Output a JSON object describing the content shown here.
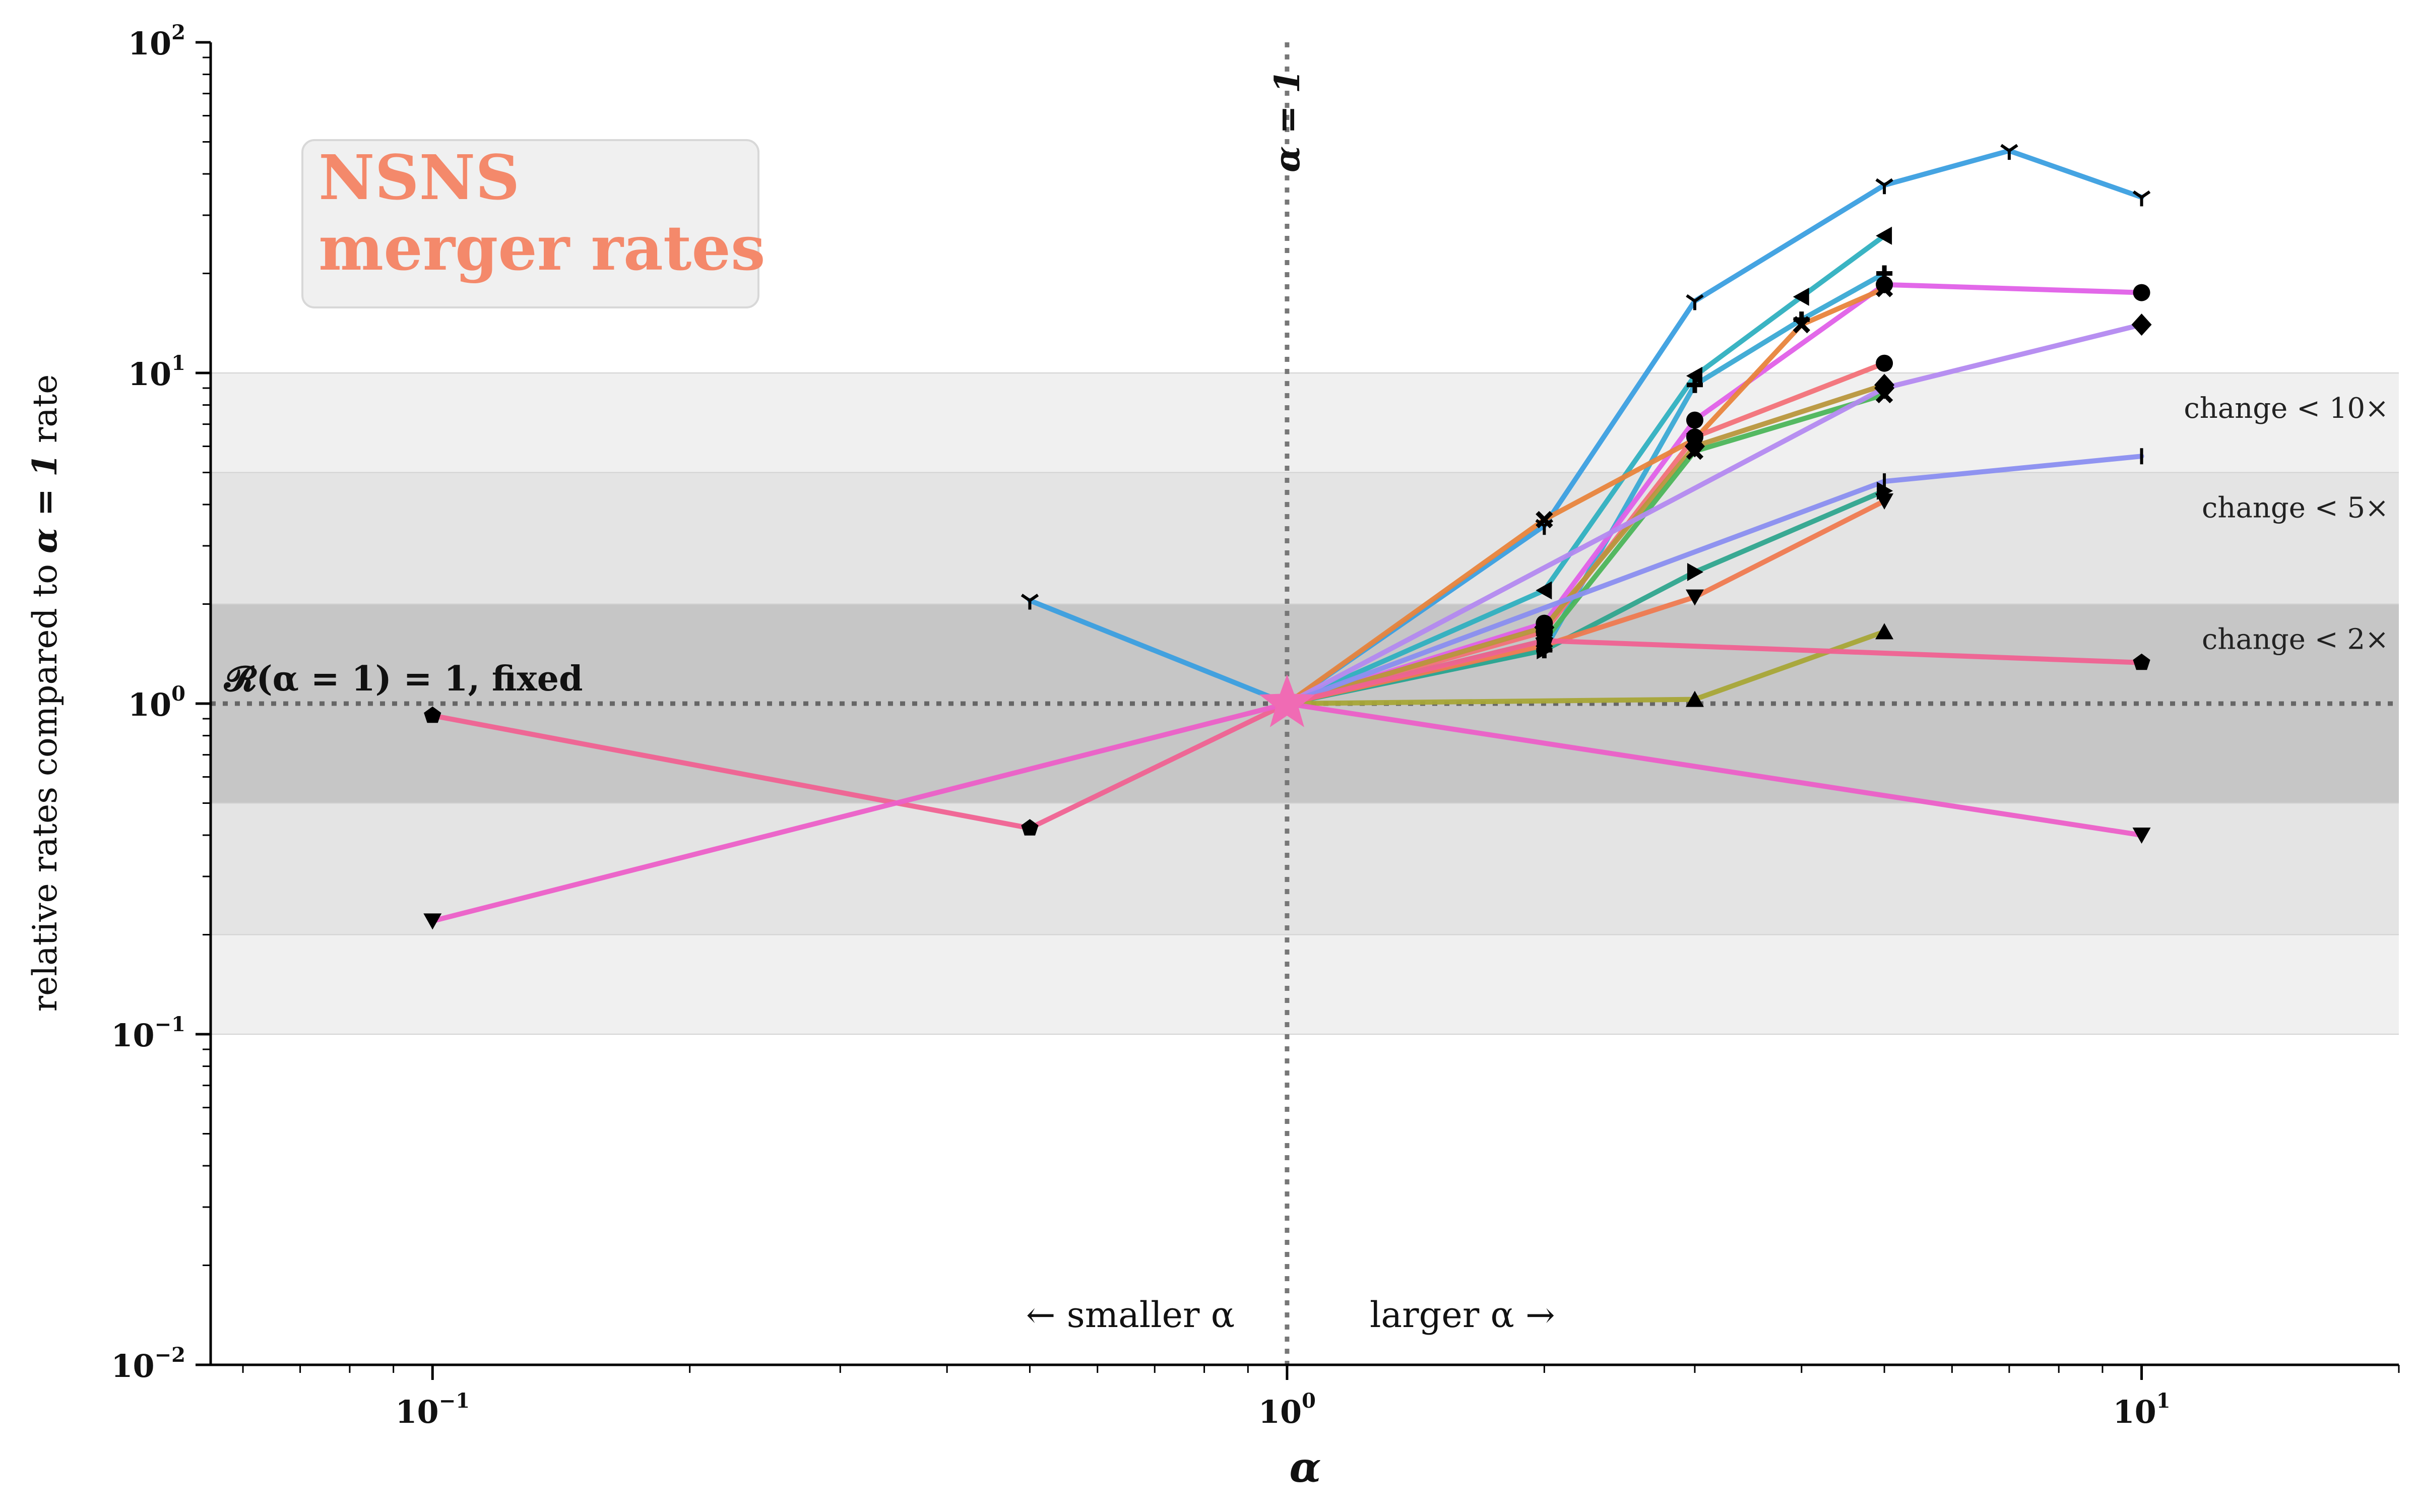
{
  "legend_box": {
    "line1": "NSNS",
    "line2": "merger rates",
    "color": "#f4896b"
  },
  "chart_data": {
    "type": "line",
    "x_scale": "log",
    "y_scale": "log",
    "xlim": [
      0.055,
      20
    ],
    "ylim": [
      0.01,
      100
    ],
    "xlabel": "α",
    "ylabel_parts": [
      "relative rates compared to ",
      "α = 1",
      " rate"
    ],
    "x_ticks": [
      {
        "value": 0.1,
        "base": "10",
        "exp": "−1"
      },
      {
        "value": 1,
        "base": "10",
        "exp": "0"
      },
      {
        "value": 10,
        "base": "10",
        "exp": "1"
      }
    ],
    "y_ticks": [
      {
        "value": 0.01,
        "base": "10",
        "exp": "−2"
      },
      {
        "value": 0.1,
        "base": "10",
        "exp": "−1"
      },
      {
        "value": 1,
        "base": "10",
        "exp": "0"
      },
      {
        "value": 10,
        "base": "10",
        "exp": "1"
      },
      {
        "value": 100,
        "base": "10",
        "exp": "2"
      }
    ],
    "bands": [
      {
        "low": 0.1,
        "high": 10,
        "color": "#f0f0f0",
        "label": "change < 10×",
        "label_y": 7.8
      },
      {
        "low": 0.2,
        "high": 5,
        "color": "#e4e4e4",
        "label": "change < 5×",
        "label_y": 3.9
      },
      {
        "low": 0.5,
        "high": 2,
        "color": "#c6c6c6",
        "label": "change < 2×",
        "label_y": 1.56
      }
    ],
    "reference": {
      "horizontal_label": "𝓡(α = 1) = 1, fixed",
      "vertical_label": "α = 1",
      "smaller_label": "← smaller α",
      "larger_label": "larger α →",
      "star_color": "#f06bb4"
    },
    "series": [
      {
        "color": "#3b9fe0",
        "marker": "tri_down",
        "x": [
          0.5,
          1,
          2,
          3,
          5,
          7,
          10
        ],
        "y": [
          2.05,
          1,
          3.45,
          16.5,
          37,
          47,
          34
        ]
      },
      {
        "color": "#2fb0c0",
        "marker": "tri_left",
        "x": [
          1,
          2,
          3,
          4,
          5
        ],
        "y": [
          1,
          2.2,
          9.8,
          17,
          26
        ]
      },
      {
        "color": "#3aa9d4",
        "marker": "plus",
        "x": [
          1,
          2,
          3,
          4,
          5
        ],
        "y": [
          1,
          1.45,
          9.2,
          14.5,
          20
        ]
      },
      {
        "color": "#e060e8",
        "marker": "circle",
        "x": [
          1,
          2,
          3,
          5,
          10
        ],
        "y": [
          1,
          1.75,
          7.2,
          18.5,
          17.5
        ]
      },
      {
        "color": "#e8843c",
        "marker": "x",
        "x": [
          1,
          2,
          3,
          4,
          5
        ],
        "y": [
          1,
          3.6,
          6.3,
          14,
          18
        ]
      },
      {
        "color": "#f27178",
        "marker": "circle",
        "x": [
          1,
          2,
          3,
          5
        ],
        "y": [
          1,
          1.65,
          6.4,
          10.7
        ]
      },
      {
        "color": "#b8963c",
        "marker": "diamond",
        "x": [
          1,
          2,
          3,
          5
        ],
        "y": [
          1,
          1.7,
          6,
          9.2
        ]
      },
      {
        "color": "#4cb55a",
        "marker": "x",
        "x": [
          1,
          2,
          3,
          5
        ],
        "y": [
          1,
          1.55,
          5.8,
          8.6
        ]
      },
      {
        "color": "#b389f0",
        "marker": "diamond",
        "x": [
          1,
          5,
          10
        ],
        "y": [
          1,
          9,
          14
        ]
      },
      {
        "color": "#8a8ef0",
        "marker": "vline",
        "x": [
          1,
          5,
          10
        ],
        "y": [
          1,
          4.7,
          5.6
        ]
      },
      {
        "color": "#2fa58e",
        "marker": "tri_right",
        "x": [
          1,
          2,
          3,
          5
        ],
        "y": [
          1,
          1.45,
          2.5,
          4.4
        ]
      },
      {
        "color": "#ef7a50",
        "marker": "tri_down_filled",
        "x": [
          1,
          2,
          3,
          5
        ],
        "y": [
          1,
          1.5,
          2.1,
          4.1
        ]
      },
      {
        "color": "#a8a637",
        "marker": "tri_up_filled",
        "x": [
          1,
          3,
          5
        ],
        "y": [
          1,
          1.03,
          1.65
        ]
      },
      {
        "color": "#f06292",
        "marker": "pentagon",
        "x": [
          0.1,
          0.5,
          1,
          2,
          10
        ],
        "y": [
          0.92,
          0.42,
          1,
          1.55,
          1.33
        ]
      },
      {
        "color": "#ec5fc8",
        "marker": "tri_down_filled",
        "x": [
          0.1,
          1,
          10
        ],
        "y": [
          0.22,
          1,
          0.4
        ]
      }
    ]
  }
}
